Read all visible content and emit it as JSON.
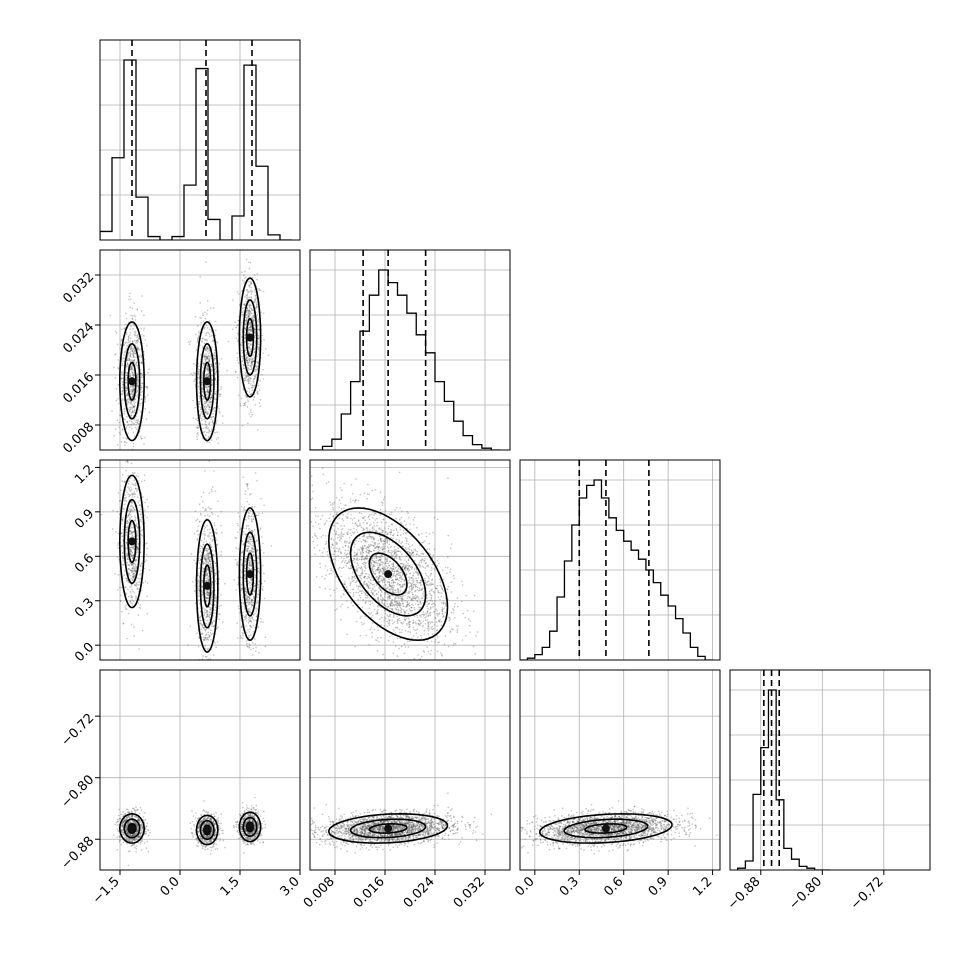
{
  "chart_data": {
    "type": "corner",
    "colors": {
      "ink": "#000000",
      "grid": "#b0b0b0",
      "points": "#555555"
    },
    "grid": true,
    "parameters": [
      {
        "range": [
          -2.0,
          3.0
        ],
        "ticks": [
          -1.5,
          0.0,
          1.5,
          3.0
        ],
        "tick_labels": [
          "−1.5",
          "0.0",
          "1.5",
          "3.0"
        ],
        "quantiles": [
          -1.2,
          0.65,
          1.8
        ],
        "modes": [
          {
            "mu": -1.2,
            "sigma": 0.16,
            "w": 1
          },
          {
            "mu": 0.68,
            "sigma": 0.14,
            "w": 1
          },
          {
            "mu": 1.75,
            "sigma": 0.14,
            "w": 1
          }
        ],
        "hist_bins": [
          -2.0,
          -1.7,
          -1.4,
          -1.1,
          -0.8,
          -0.5,
          -0.2,
          0.1,
          0.4,
          0.7,
          1.0,
          1.3,
          1.6,
          1.9,
          2.2,
          2.5,
          2.8
        ],
        "hist_counts": [
          0.05,
          0.48,
          1.05,
          0.25,
          0.02,
          0.0,
          0.02,
          0.32,
          1.0,
          0.12,
          0.0,
          0.14,
          1.02,
          0.43,
          0.03,
          0.0
        ]
      },
      {
        "range": [
          0.004,
          0.036
        ],
        "ticks": [
          0.008,
          0.016,
          0.024,
          0.032
        ],
        "tick_labels": [
          "0.008",
          "0.016",
          "0.024",
          "0.032"
        ],
        "quantiles": [
          0.0125,
          0.0165,
          0.0225
        ],
        "hist_bins": [
          0.0,
          0.0015,
          0.003,
          0.0045,
          0.006,
          0.0075,
          0.009,
          0.0105,
          0.012,
          0.0135,
          0.015,
          0.0165,
          0.018,
          0.0195,
          0.021,
          0.0225,
          0.024,
          0.0255,
          0.027,
          0.0285,
          0.03,
          0.0315,
          0.033,
          0.0345
        ],
        "hist_counts": [
          0.0,
          0.0,
          0.0,
          0.0,
          0.02,
          0.06,
          0.2,
          0.38,
          0.66,
          0.86,
          1.0,
          0.93,
          0.86,
          0.76,
          0.64,
          0.54,
          0.38,
          0.27,
          0.16,
          0.08,
          0.03,
          0.01,
          0.0
        ]
      },
      {
        "range": [
          -0.1,
          1.25
        ],
        "ticks": [
          0.0,
          0.3,
          0.6,
          0.9,
          1.2
        ],
        "tick_labels": [
          "0.0",
          "0.3",
          "0.6",
          "0.9",
          "1.2"
        ],
        "quantiles": [
          0.3,
          0.48,
          0.77
        ],
        "hist_bins": [
          -0.1,
          -0.05,
          0.0,
          0.05,
          0.1,
          0.15,
          0.2,
          0.25,
          0.3,
          0.35,
          0.4,
          0.45,
          0.5,
          0.55,
          0.6,
          0.65,
          0.7,
          0.75,
          0.8,
          0.85,
          0.9,
          0.95,
          1.0,
          1.05,
          1.1,
          1.15,
          1.2
        ],
        "hist_counts": [
          0.0,
          0.01,
          0.03,
          0.07,
          0.16,
          0.35,
          0.55,
          0.75,
          0.9,
          0.97,
          1.0,
          0.9,
          0.79,
          0.72,
          0.66,
          0.61,
          0.56,
          0.5,
          0.43,
          0.36,
          0.3,
          0.23,
          0.15,
          0.07,
          0.02,
          0.0
        ]
      },
      {
        "range": [
          -0.92,
          -0.66
        ],
        "ticks": [
          -0.88,
          -0.8,
          -0.72
        ],
        "tick_labels": [
          "−0.88",
          "−0.80",
          "−0.72"
        ],
        "quantiles": [
          -0.876,
          -0.866,
          -0.856
        ],
        "hist_bins": [
          -0.91,
          -0.9,
          -0.89,
          -0.88,
          -0.87,
          -0.86,
          -0.85,
          -0.84,
          -0.83,
          -0.82,
          -0.81,
          -0.8,
          -0.79
        ],
        "hist_counts": [
          0.01,
          0.05,
          0.42,
          0.68,
          1.0,
          0.39,
          0.12,
          0.06,
          0.02,
          0.01,
          0.0,
          0.0
        ]
      }
    ],
    "correlations": {
      "1-0": [
        0.015,
        0.015,
        0.022
      ],
      "2-0": [
        0.7,
        0.4,
        0.48
      ],
      "3-0": [
        -0.866,
        -0.868,
        -0.864
      ],
      "2-1": -0.5,
      "3-1": 0.2,
      "3-2": 0.25
    }
  }
}
